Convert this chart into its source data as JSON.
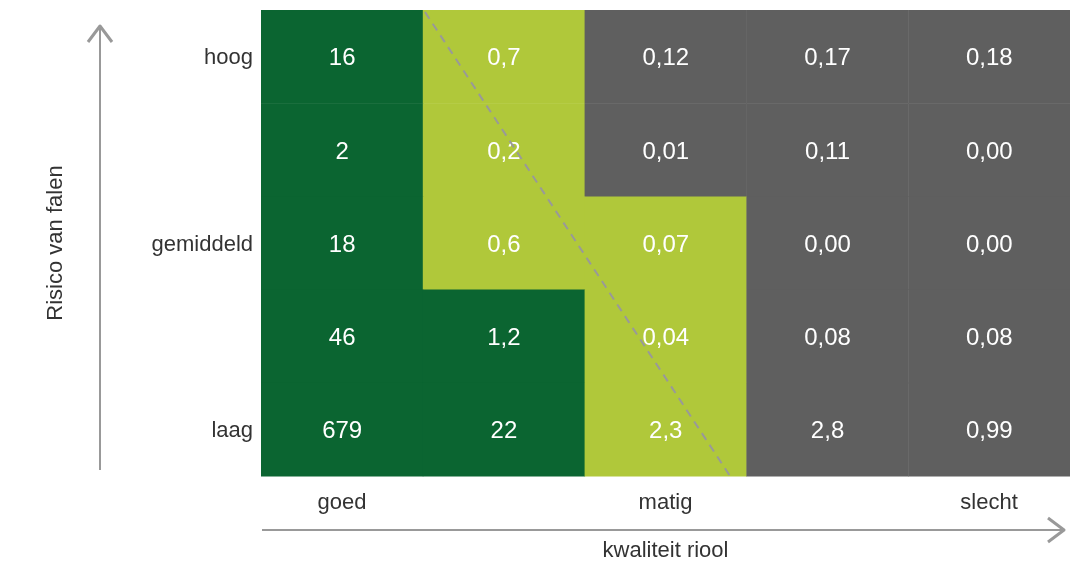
{
  "chart_data": {
    "type": "heatmap",
    "xlabel": "kwaliteit riool",
    "ylabel": "Risico van falen",
    "categories": [
      "goed",
      null,
      "matig",
      null,
      "slecht"
    ],
    "y_categories": [
      "hoog",
      null,
      "gemiddeld",
      null,
      "laag"
    ],
    "cells": [
      [
        16,
        0.7,
        0.12,
        0.17,
        0.18
      ],
      [
        2,
        0.2,
        0.01,
        0.11,
        0.0
      ],
      [
        18,
        0.6,
        0.07,
        0.0,
        0.0
      ],
      [
        46,
        1.2,
        0.04,
        0.08,
        0.08
      ],
      [
        679,
        22,
        2.3,
        2.8,
        0.99
      ]
    ],
    "cell_labels": [
      [
        "16",
        "0,7",
        "0,12",
        "0,17",
        "0,18"
      ],
      [
        "2",
        "0,2",
        "0,01",
        "0,11",
        "0,00"
      ],
      [
        "18",
        "0,6",
        "0,07",
        "0,00",
        "0,00"
      ],
      [
        "46",
        "1,2",
        "0,04",
        "0,08",
        "0,08"
      ],
      [
        "679",
        "22",
        "2,3",
        "2,8",
        "0,99"
      ]
    ],
    "colors": [
      [
        "#0b6531",
        "#b0c83a",
        "#5f5f5f",
        "#5f5f5f",
        "#5f5f5f"
      ],
      [
        "#0b6531",
        "#b0c83a",
        "#5f5f5f",
        "#5f5f5f",
        "#5f5f5f"
      ],
      [
        "#0b6531",
        "#b0c83a",
        "#b0c83a",
        "#5f5f5f",
        "#5f5f5f"
      ],
      [
        "#0b6531",
        "#0b6531",
        "#b0c83a",
        "#5f5f5f",
        "#5f5f5f"
      ],
      [
        "#0b6531",
        "#0b6531",
        "#b0c83a",
        "#5f5f5f",
        "#5f5f5f"
      ]
    ]
  }
}
